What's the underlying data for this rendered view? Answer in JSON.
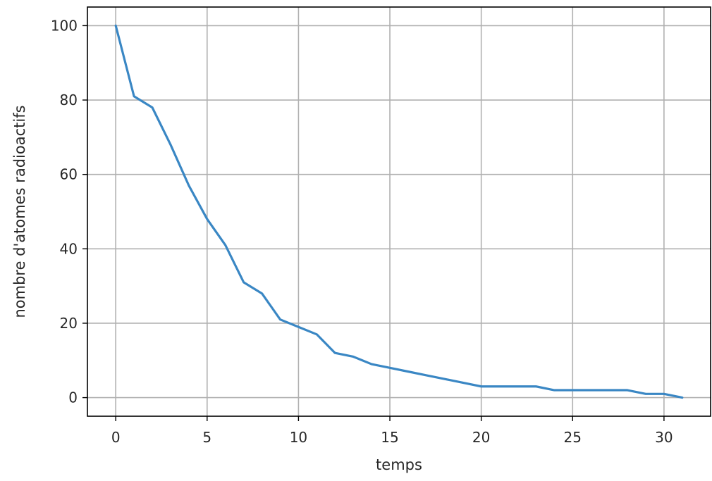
{
  "chart_data": {
    "type": "line",
    "title": "",
    "xlabel": "temps",
    "ylabel": "nombre d'atomes radioactifs",
    "xlim": [
      -1.55,
      32.55
    ],
    "ylim": [
      -5,
      105
    ],
    "xticks": [
      0,
      5,
      10,
      15,
      20,
      25,
      30
    ],
    "yticks": [
      0,
      20,
      40,
      60,
      80,
      100
    ],
    "grid": true,
    "legend": "none",
    "series": [
      {
        "color": "#3a87c4",
        "x": [
          0,
          1,
          2,
          3,
          4,
          5,
          6,
          7,
          8,
          9,
          10,
          11,
          12,
          13,
          14,
          15,
          16,
          17,
          18,
          19,
          20,
          21,
          22,
          23,
          24,
          25,
          26,
          27,
          28,
          29,
          30,
          31
        ],
        "y": [
          100,
          81,
          78,
          68,
          57,
          48,
          41,
          31,
          28,
          21,
          19,
          17,
          12,
          11,
          9,
          8,
          7,
          6,
          5,
          4,
          3,
          3,
          3,
          3,
          2,
          2,
          2,
          2,
          2,
          1,
          1,
          0
        ]
      }
    ]
  }
}
